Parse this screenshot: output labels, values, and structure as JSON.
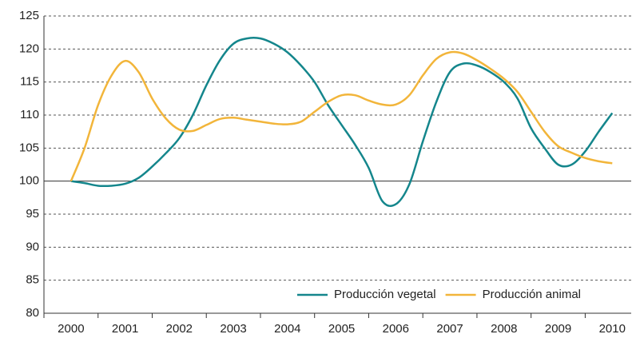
{
  "chart_data": {
    "type": "line",
    "x": [
      2000,
      2000.25,
      2000.5,
      2000.75,
      2001,
      2001.25,
      2001.5,
      2001.75,
      2002,
      2002.25,
      2002.5,
      2002.75,
      2003,
      2003.25,
      2003.5,
      2003.75,
      2004,
      2004.25,
      2004.5,
      2004.75,
      2005,
      2005.25,
      2005.5,
      2005.75,
      2006,
      2006.25,
      2006.5,
      2006.75,
      2007,
      2007.25,
      2007.5,
      2007.75,
      2008,
      2008.25,
      2008.5,
      2008.75,
      2009,
      2009.25,
      2009.5,
      2009.75,
      2010
    ],
    "series": [
      {
        "name": "Producción vegetal",
        "color": "#14868c",
        "values": [
          100,
          99.7,
          99.3,
          99.3,
          99.6,
          100.5,
          102.2,
          104.2,
          106.5,
          110,
          114.5,
          118.3,
          120.8,
          121.6,
          121.6,
          120.8,
          119.5,
          117.5,
          115,
          111.5,
          108.5,
          105.5,
          102,
          97,
          96.5,
          99.5,
          106,
          112,
          116.5,
          117.8,
          117.5,
          116.5,
          115,
          112.5,
          108,
          105,
          102.5,
          102.5,
          104.5,
          107.5,
          110.3
        ]
      },
      {
        "name": "Producción animal",
        "color": "#f2b53a",
        "values": [
          100,
          105,
          111.5,
          116,
          118.2,
          116.5,
          112.5,
          109.5,
          107.8,
          107.6,
          108.5,
          109.4,
          109.6,
          109.3,
          109,
          108.7,
          108.6,
          109,
          110.5,
          112,
          113,
          113,
          112.2,
          111.6,
          111.6,
          113,
          116,
          118.5,
          119.5,
          119.3,
          118.3,
          117,
          115.5,
          113.5,
          110.5,
          107.5,
          105.3,
          104.3,
          103.5,
          103,
          102.7
        ]
      }
    ],
    "xlim": [
      1999.5,
      2010.35
    ],
    "xticks": [
      2000,
      2001,
      2002,
      2003,
      2004,
      2005,
      2006,
      2007,
      2008,
      2009,
      2010
    ],
    "ylim": [
      80,
      125
    ],
    "yticks": [
      80,
      85,
      90,
      95,
      100,
      105,
      110,
      115,
      120,
      125
    ],
    "grid": true,
    "reference_line": 100,
    "legend": "lower right"
  }
}
